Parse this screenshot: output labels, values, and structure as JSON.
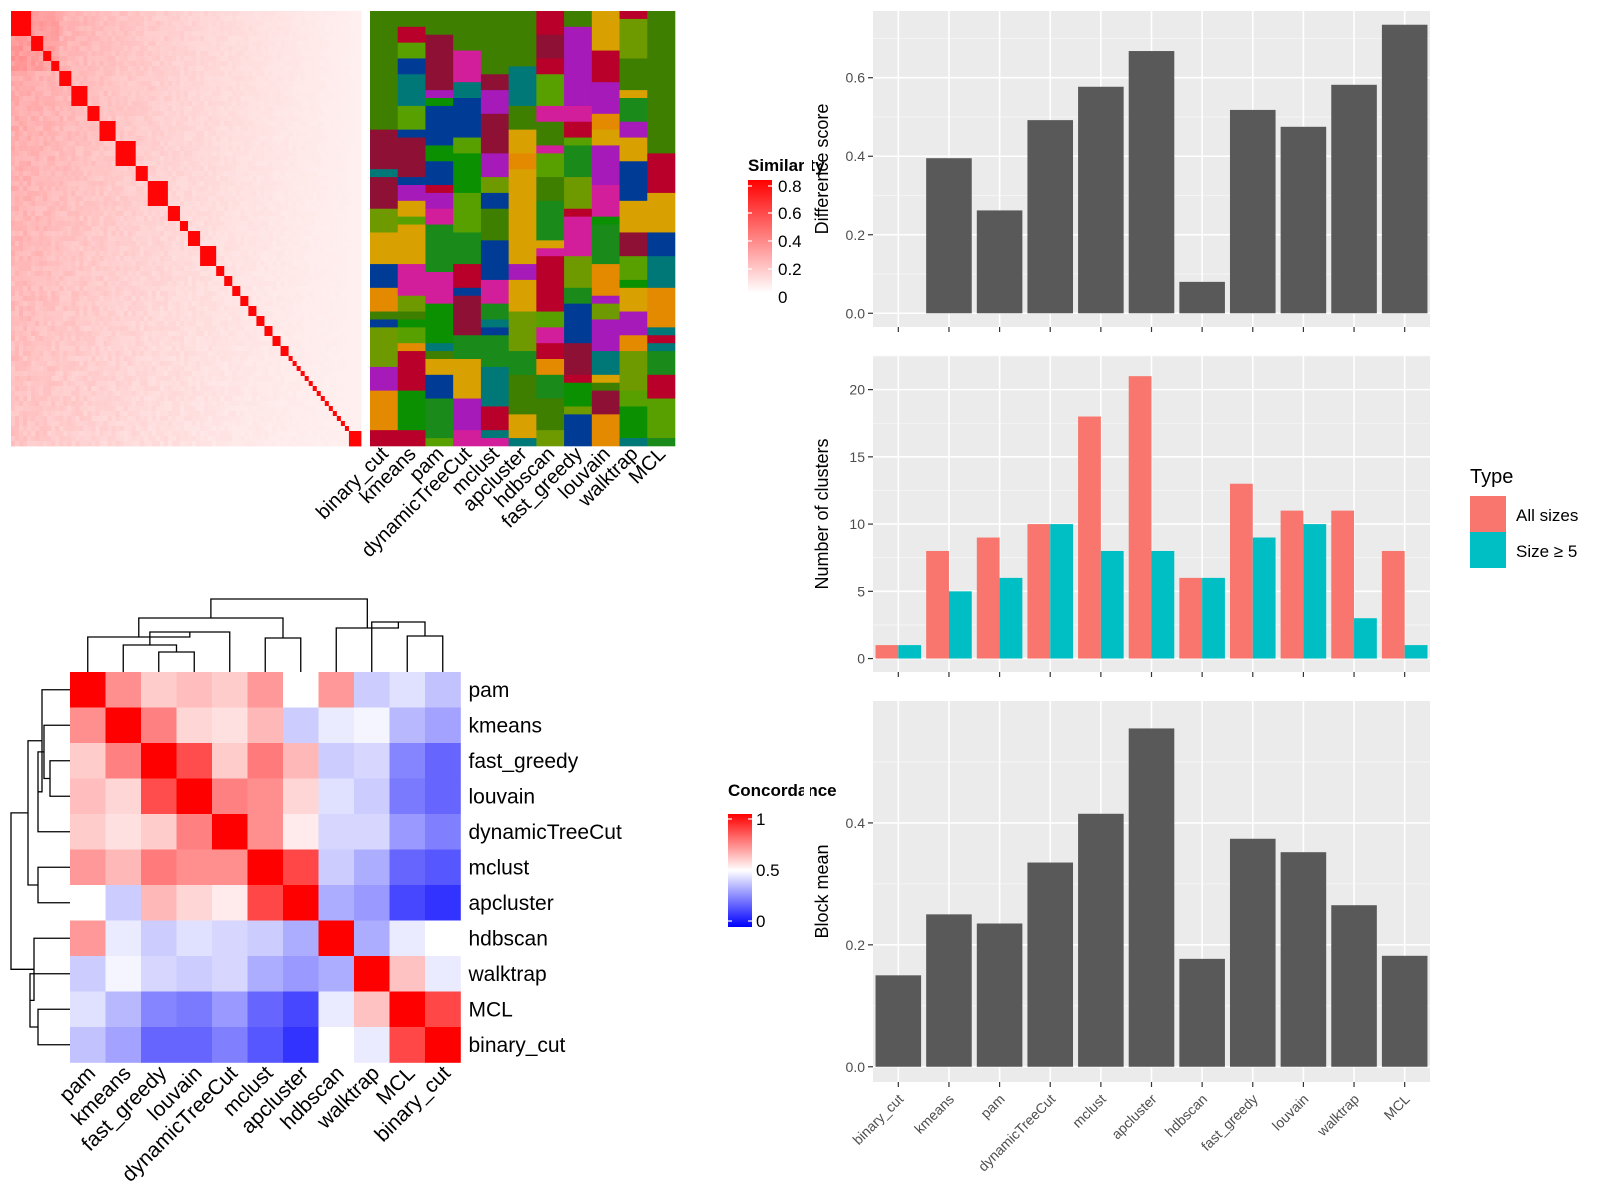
{
  "similarity_legend": {
    "title": "Similarity",
    "ticks": [
      "0.8",
      "0.6",
      "0.4",
      "0.2",
      "0"
    ],
    "colors": [
      "#ffffff",
      "#ff0000"
    ]
  },
  "concordance_legend": {
    "title": "Concordance",
    "ticks": [
      "1",
      "0.5",
      "0"
    ],
    "colors": [
      "#0000ff",
      "#ffffff",
      "#ff0000"
    ]
  },
  "type_legend": {
    "title": "Type",
    "entries": [
      {
        "label": "All sizes",
        "color": "#f8766d"
      },
      {
        "label": "Size ≥ 5",
        "color": "#00bfc4"
      }
    ]
  },
  "chart_data": [
    {
      "type": "heatmap",
      "description": "Similarity heatmap with cluster-membership annotation columns",
      "column_labels": [
        "binary_cut",
        "kmeans",
        "pam",
        "dynamicTreeCut",
        "mclust",
        "apcluster",
        "hdbscan",
        "fast_greedy",
        "louvain",
        "walktrap",
        "MCL"
      ],
      "diagonal_block_sizes": [
        5,
        3,
        2,
        2,
        3,
        4,
        3,
        4,
        5,
        3,
        5,
        3,
        2,
        3,
        4,
        2,
        2,
        2,
        2,
        2,
        2,
        2,
        2,
        2,
        1,
        1,
        1,
        1,
        1,
        1,
        1,
        1,
        1,
        1,
        1,
        1,
        1,
        1,
        1,
        3
      ],
      "annotation_palette": [
        "#3f7f00",
        "#1a8a1a",
        "#d21e9a",
        "#8f1035",
        "#6e9a00",
        "#007878",
        "#e48a00",
        "#0a9000",
        "#a51ab8",
        "#d8a000",
        "#003c96",
        "#58a000",
        "#b8002a"
      ],
      "legend": "Similarity"
    },
    {
      "type": "heatmap",
      "description": "Concordance between clustering methods",
      "rows": [
        "pam",
        "kmeans",
        "fast_greedy",
        "louvain",
        "dynamicTreeCut",
        "mclust",
        "apcluster",
        "hdbscan",
        "walktrap",
        "MCL",
        "binary_cut"
      ],
      "columns": [
        "pam",
        "kmeans",
        "fast_greedy",
        "louvain",
        "dynamicTreeCut",
        "mclust",
        "apcluster",
        "hdbscan",
        "walktrap",
        "MCL",
        "binary_cut"
      ],
      "values": [
        [
          1.0,
          0.72,
          0.6,
          0.63,
          0.6,
          0.7,
          0.5,
          0.7,
          0.4,
          0.44,
          0.38
        ],
        [
          0.72,
          1.0,
          0.75,
          0.58,
          0.56,
          0.64,
          0.4,
          0.46,
          0.48,
          0.36,
          0.32
        ],
        [
          0.6,
          0.75,
          1.0,
          0.85,
          0.6,
          0.76,
          0.64,
          0.4,
          0.42,
          0.26,
          0.2
        ],
        [
          0.63,
          0.58,
          0.85,
          1.0,
          0.75,
          0.72,
          0.58,
          0.44,
          0.4,
          0.24,
          0.2
        ],
        [
          0.6,
          0.56,
          0.6,
          0.75,
          1.0,
          0.72,
          0.54,
          0.42,
          0.42,
          0.3,
          0.25
        ],
        [
          0.7,
          0.64,
          0.76,
          0.72,
          0.72,
          1.0,
          0.86,
          0.4,
          0.34,
          0.2,
          0.17
        ],
        [
          0.5,
          0.4,
          0.64,
          0.58,
          0.54,
          0.86,
          1.0,
          0.34,
          0.3,
          0.14,
          0.1
        ],
        [
          0.7,
          0.46,
          0.4,
          0.44,
          0.42,
          0.4,
          0.34,
          1.0,
          0.34,
          0.46,
          0.5
        ],
        [
          0.4,
          0.48,
          0.42,
          0.4,
          0.42,
          0.34,
          0.3,
          0.34,
          1.0,
          0.62,
          0.46
        ],
        [
          0.44,
          0.36,
          0.26,
          0.24,
          0.3,
          0.2,
          0.14,
          0.46,
          0.62,
          1.0,
          0.86
        ],
        [
          0.38,
          0.32,
          0.2,
          0.2,
          0.25,
          0.17,
          0.1,
          0.5,
          0.46,
          0.86,
          1.0
        ]
      ],
      "legend": "Concordance"
    },
    {
      "type": "bar",
      "categories": [
        "binary_cut",
        "kmeans",
        "pam",
        "dynamicTreeCut",
        "mclust",
        "apcluster",
        "hdbscan",
        "fast_greedy",
        "louvain",
        "walktrap",
        "MCL"
      ],
      "values": [
        0.0,
        0.395,
        0.262,
        0.492,
        0.577,
        0.668,
        0.08,
        0.518,
        0.475,
        0.582,
        0.735
      ],
      "ylabel": "Difference score",
      "ylim": [
        -0.035,
        0.77
      ],
      "yticks": [
        0.0,
        0.2,
        0.4,
        0.6
      ],
      "yticklabels": [
        "0.0",
        "0.2",
        "0.4",
        "0.6"
      ],
      "grid": true
    },
    {
      "type": "bar",
      "categories": [
        "binary_cut",
        "kmeans",
        "pam",
        "dynamicTreeCut",
        "mclust",
        "apcluster",
        "hdbscan",
        "fast_greedy",
        "louvain",
        "walktrap",
        "MCL"
      ],
      "series": [
        {
          "name": "All sizes",
          "values": [
            1,
            8,
            9,
            10,
            18,
            21,
            6,
            13,
            11,
            11,
            8
          ]
        },
        {
          "name": "Size ≥ 5",
          "values": [
            1,
            5,
            6,
            10,
            8,
            8,
            6,
            9,
            10,
            3,
            1
          ]
        }
      ],
      "ylabel": "Number of clusters",
      "ylim": [
        -1,
        22.5
      ],
      "yticks": [
        0,
        5,
        10,
        15,
        20
      ],
      "yticklabels": [
        "0",
        "5",
        "10",
        "15",
        "20"
      ],
      "legend": "right",
      "grid": true
    },
    {
      "type": "bar",
      "categories": [
        "binary_cut",
        "kmeans",
        "pam",
        "dynamicTreeCut",
        "mclust",
        "apcluster",
        "hdbscan",
        "fast_greedy",
        "louvain",
        "walktrap",
        "MCL"
      ],
      "values": [
        0.15,
        0.25,
        0.235,
        0.335,
        0.415,
        0.555,
        0.177,
        0.374,
        0.352,
        0.265,
        0.182
      ],
      "ylabel": "Block mean",
      "ylim": [
        -0.025,
        0.6
      ],
      "yticks": [
        0.0,
        0.2,
        0.4
      ],
      "yticklabels": [
        "0.0",
        "0.2",
        "0.4"
      ],
      "grid": true
    }
  ]
}
